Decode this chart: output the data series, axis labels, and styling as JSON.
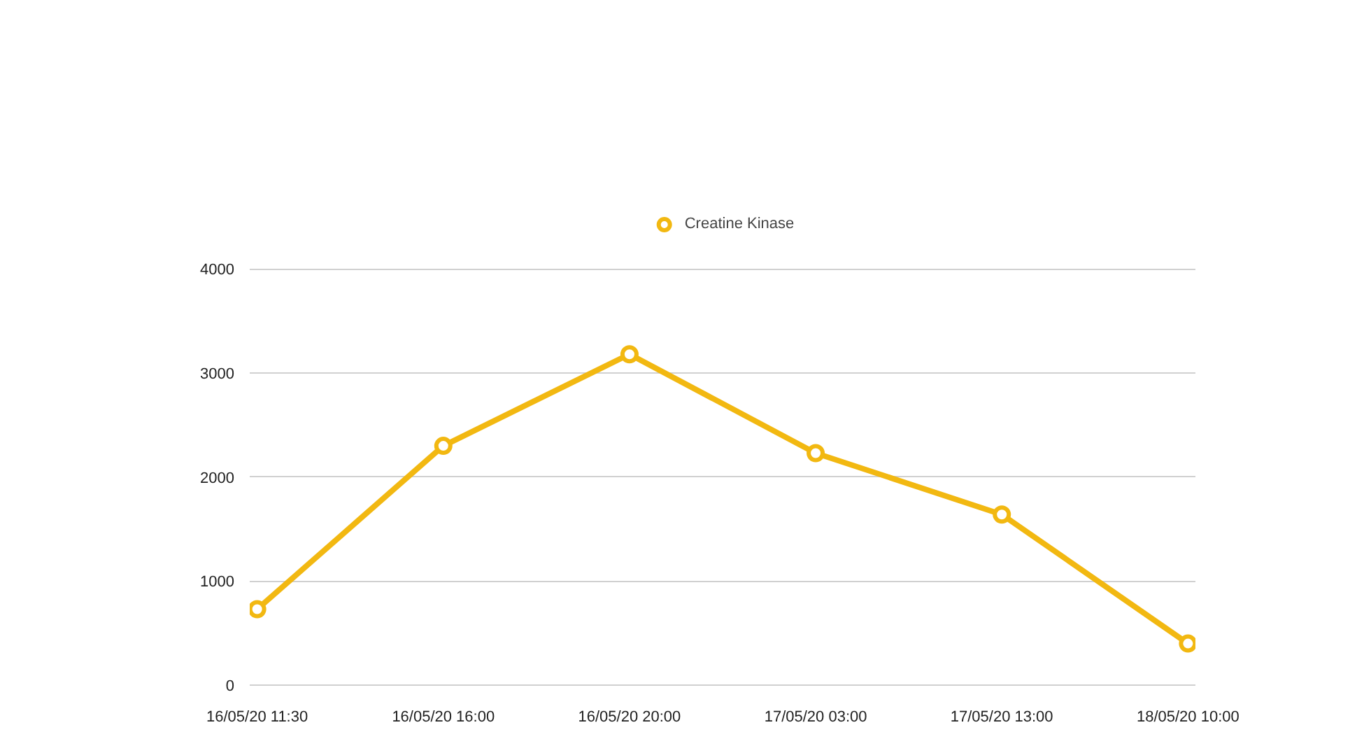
{
  "chart_data": {
    "type": "line",
    "categories": [
      "16/05/20 11:30",
      "16/05/20 16:00",
      "16/05/20 20:00",
      "17/05/20 03:00",
      "17/05/20 13:00",
      "18/05/20 10:00"
    ],
    "series": [
      {
        "name": "Creatine Kinase",
        "color": "#f2b811",
        "values": [
          730,
          2300,
          3180,
          2230,
          1640,
          400
        ]
      }
    ],
    "ylim": [
      0,
      4000
    ],
    "yticks": [
      0,
      1000,
      2000,
      3000,
      4000
    ],
    "grid": "y",
    "legend": "top",
    "marker": "circle",
    "line_style": "solid"
  }
}
